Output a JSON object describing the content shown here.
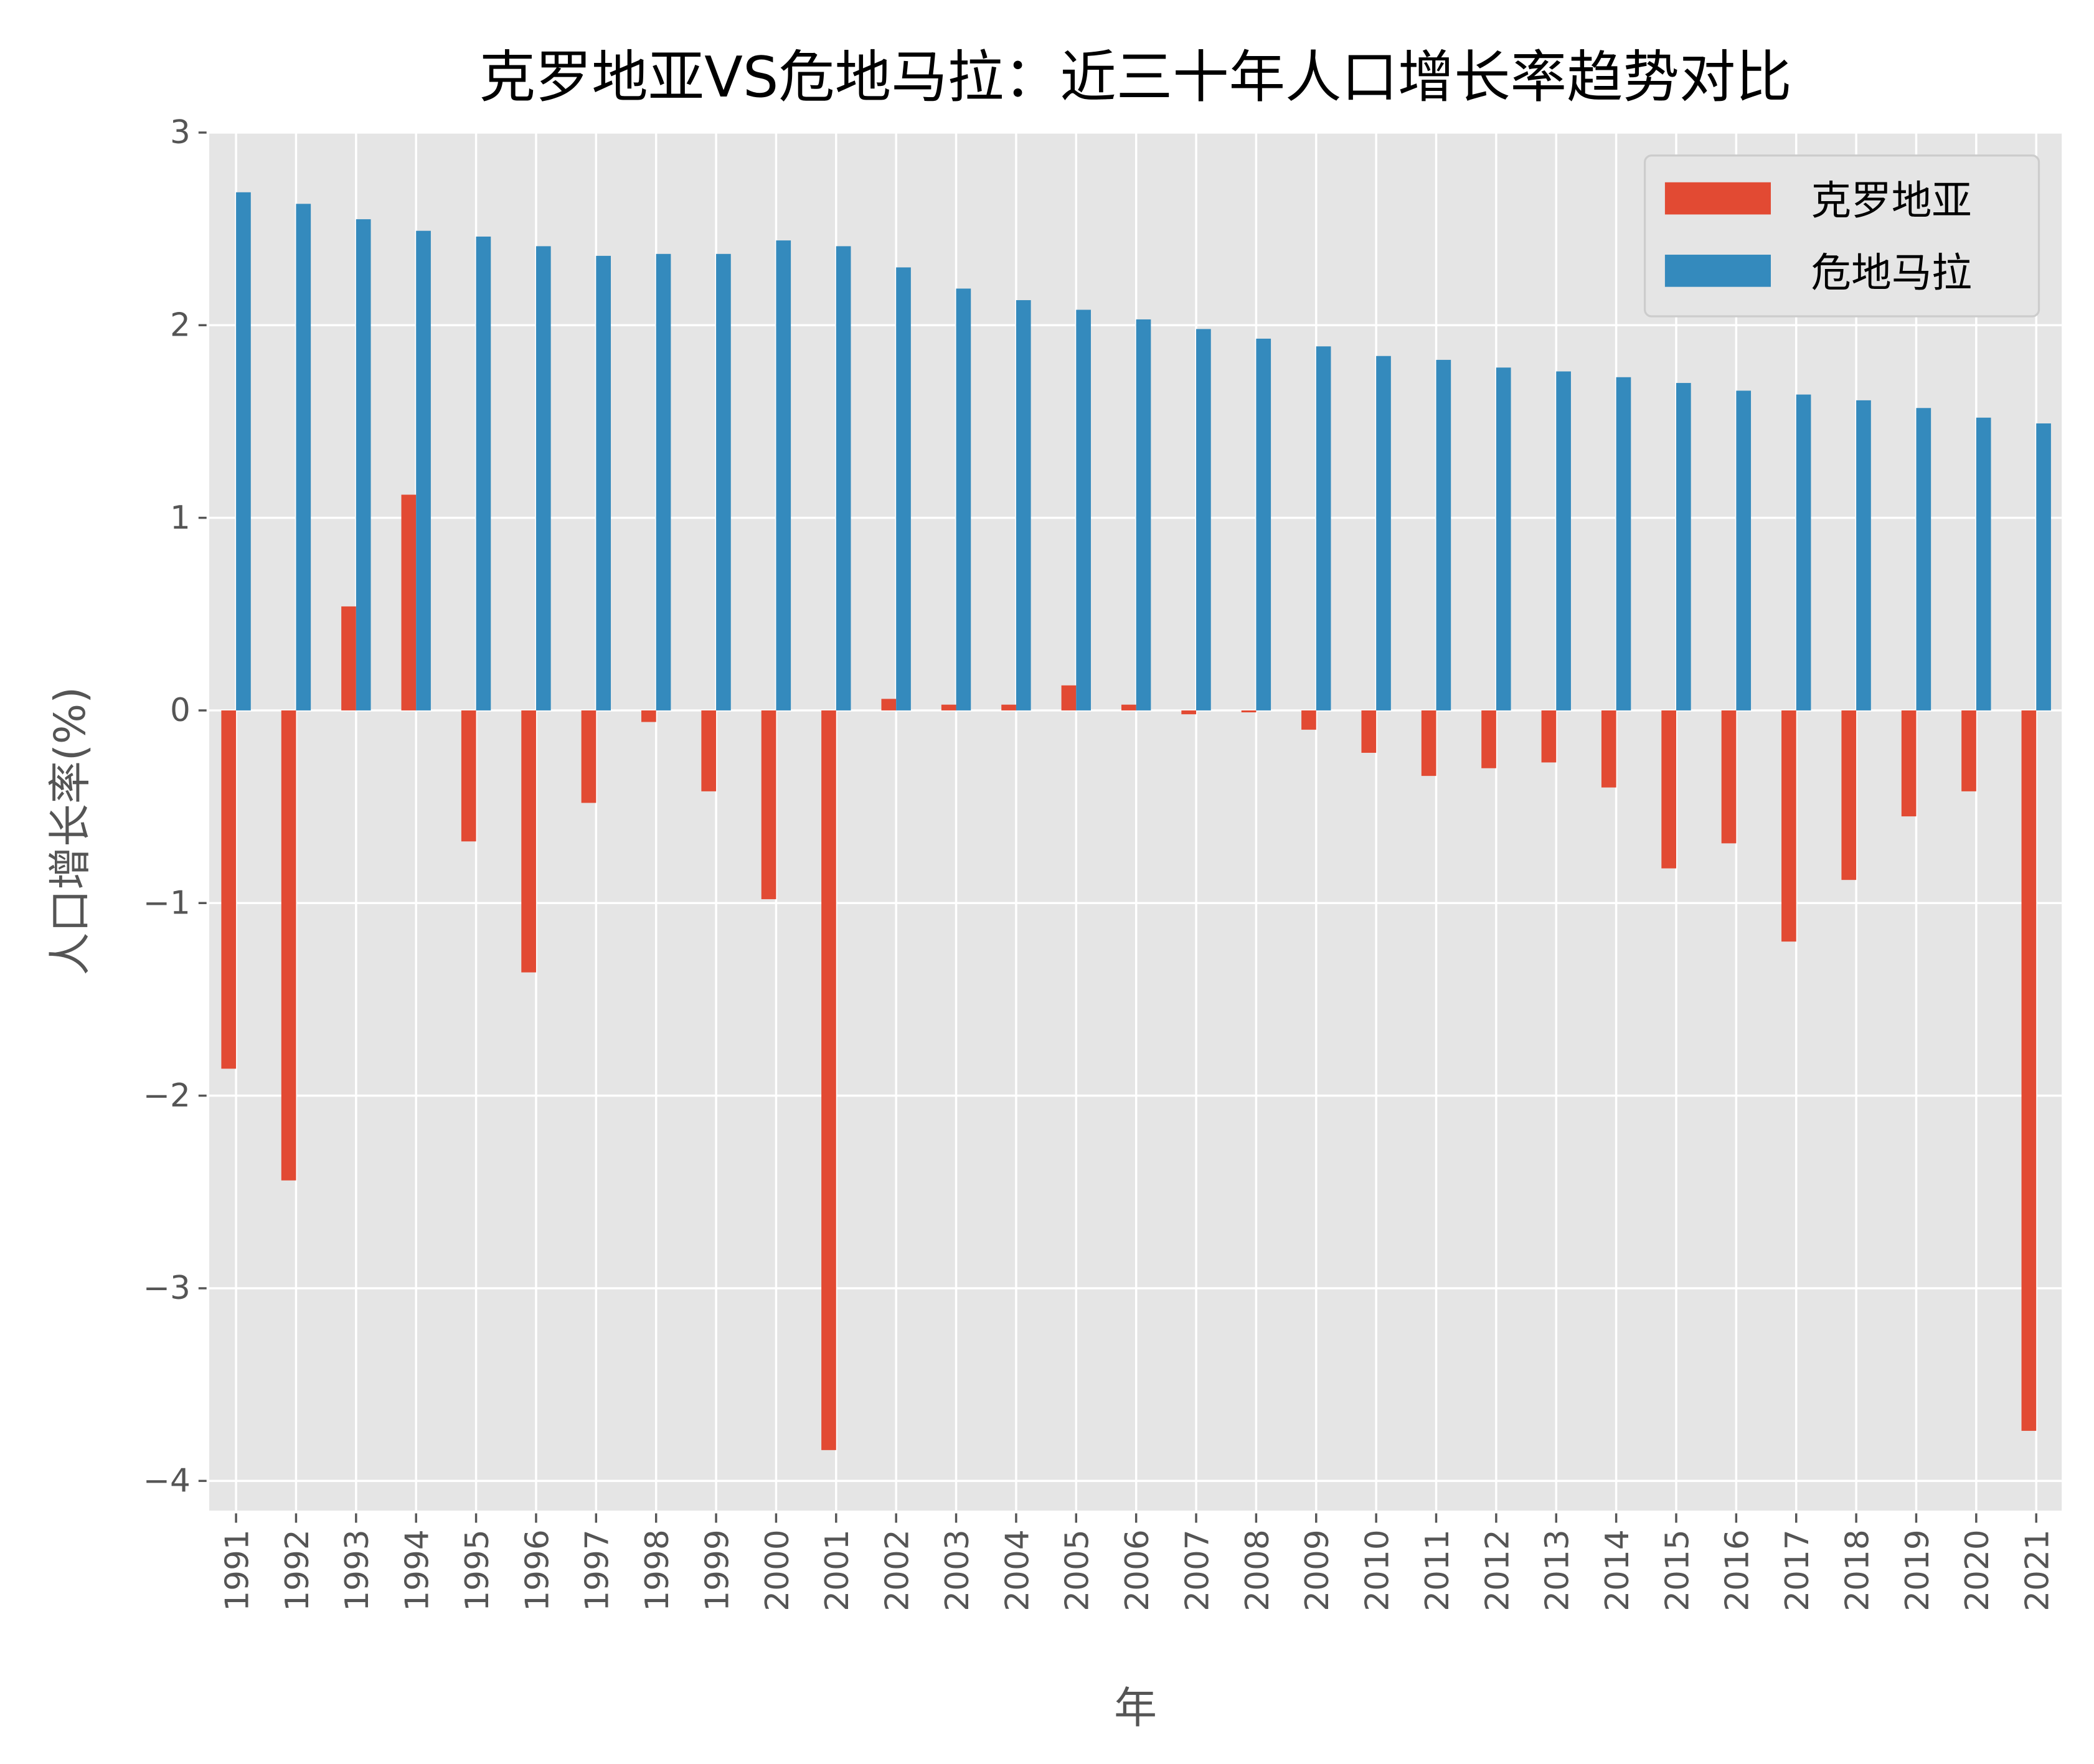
{
  "chart_data": {
    "type": "bar",
    "title": "克罗地亚VS危地马拉：近三十年人口增长率趋势对比",
    "xlabel": "年",
    "ylabel": "人口增长率(%)",
    "ylim": [
      -4.15,
      3.0
    ],
    "yticks": [
      3,
      2,
      1,
      0,
      -1,
      -2,
      -3,
      -4
    ],
    "ytick_labels": [
      "3",
      "2",
      "1",
      "0",
      "−1",
      "−2",
      "−3",
      "−4"
    ],
    "grid": true,
    "legend_position": "top-right",
    "categories": [
      "1991",
      "1992",
      "1993",
      "1994",
      "1995",
      "1996",
      "1997",
      "1998",
      "1999",
      "2000",
      "2001",
      "2002",
      "2003",
      "2004",
      "2005",
      "2006",
      "2007",
      "2008",
      "2009",
      "2010",
      "2011",
      "2012",
      "2013",
      "2014",
      "2015",
      "2016",
      "2017",
      "2018",
      "2019",
      "2020",
      "2021"
    ],
    "series": [
      {
        "name": "克罗地亚",
        "color": "#E24A33",
        "values": [
          -1.86,
          -2.44,
          0.54,
          1.12,
          -0.68,
          -1.36,
          -0.48,
          -0.06,
          -0.42,
          -0.98,
          -3.84,
          0.06,
          0.03,
          0.03,
          0.13,
          0.03,
          -0.02,
          -0.01,
          -0.1,
          -0.22,
          -0.34,
          -0.3,
          -0.27,
          -0.4,
          -0.82,
          -0.69,
          -1.2,
          -0.88,
          -0.55,
          -0.42,
          -3.74
        ]
      },
      {
        "name": "危地马拉",
        "color": "#348ABD",
        "values": [
          2.69,
          2.63,
          2.55,
          2.49,
          2.46,
          2.41,
          2.36,
          2.37,
          2.37,
          2.44,
          2.41,
          2.3,
          2.19,
          2.13,
          2.08,
          2.03,
          1.98,
          1.93,
          1.89,
          1.84,
          1.82,
          1.78,
          1.76,
          1.73,
          1.7,
          1.66,
          1.64,
          1.61,
          1.57,
          1.52,
          1.49
        ]
      }
    ]
  }
}
